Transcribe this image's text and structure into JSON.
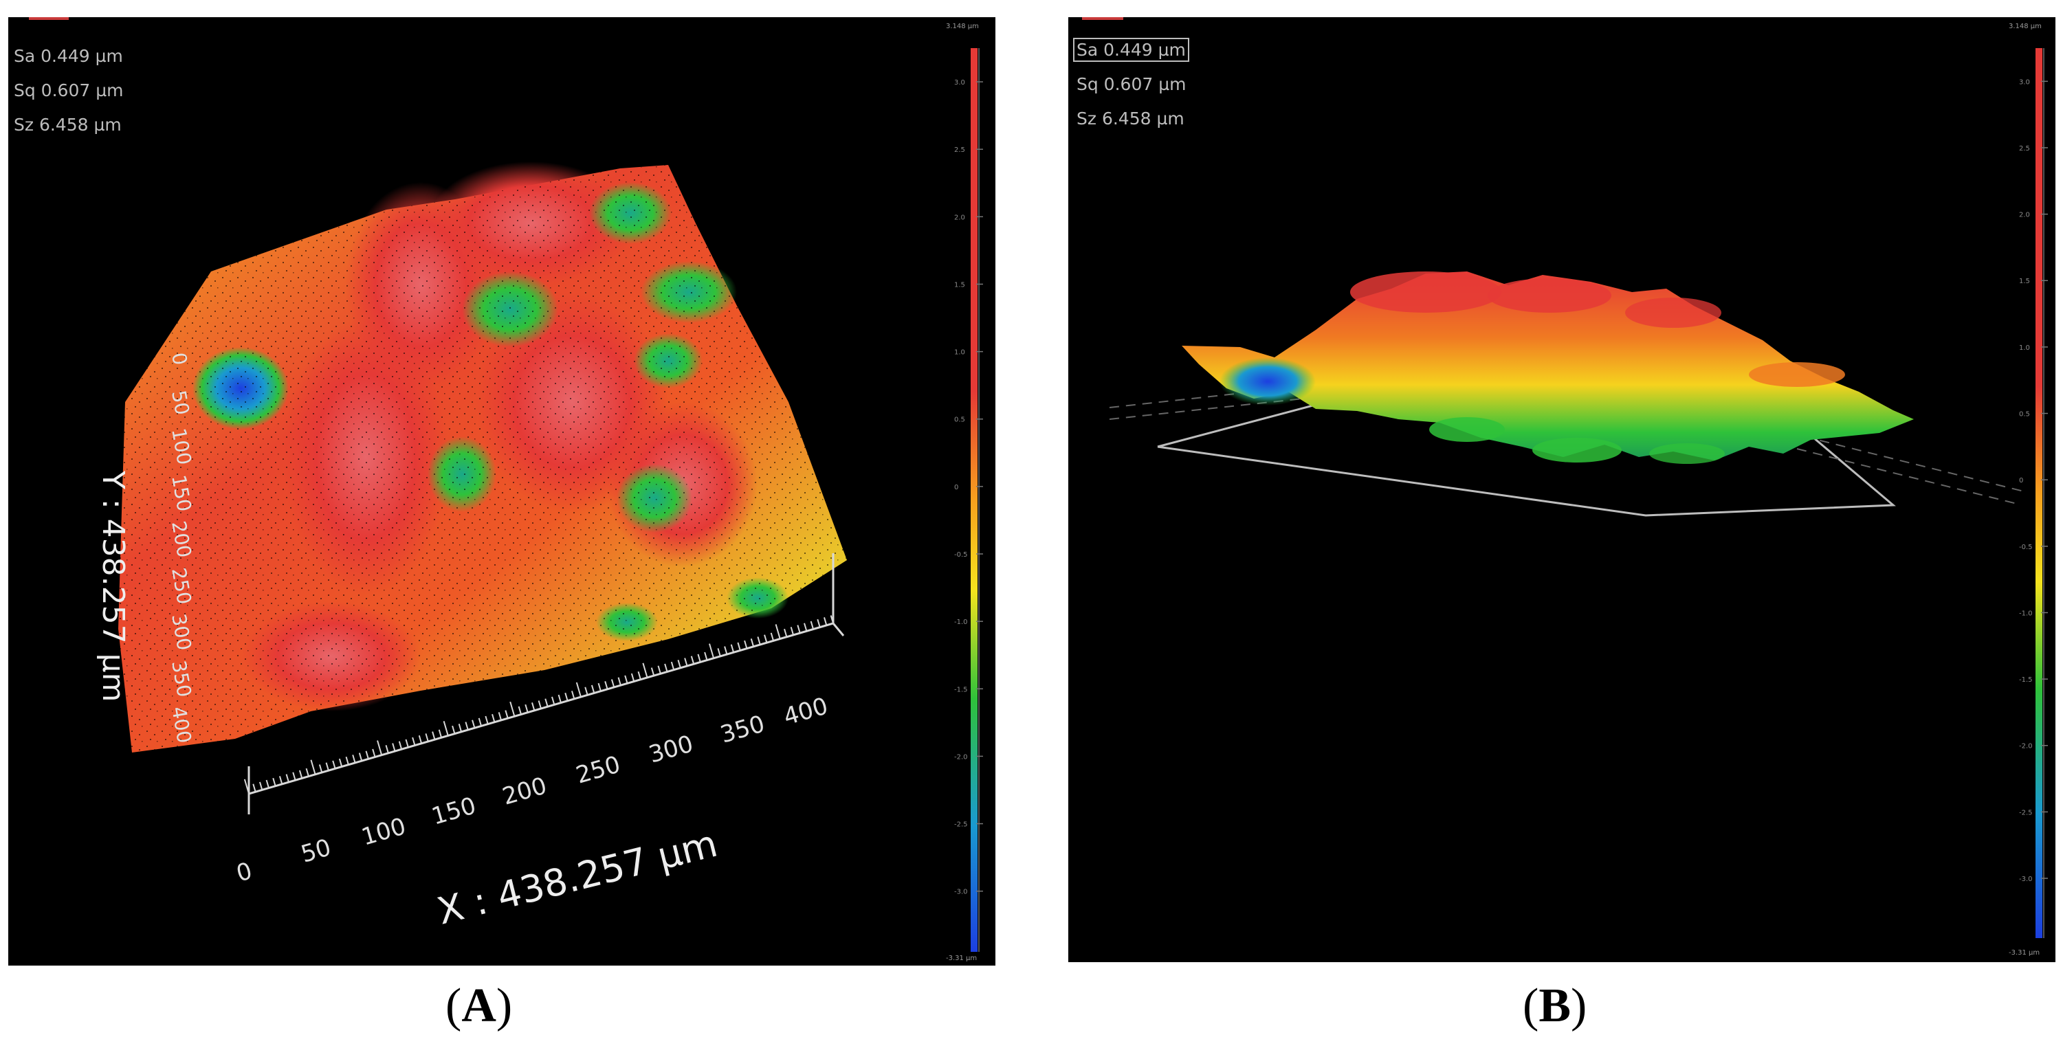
{
  "panel_a": {
    "caption_open": "(",
    "caption_letter": "A",
    "caption_close": ")",
    "stats": {
      "sa": "Sa 0.449 µm",
      "sq": "Sq 0.607 µm",
      "sz": "Sz 6.458 µm"
    },
    "x_axis_label": "X : 438.257 µm",
    "y_axis_label": "Y : 438.257 µm",
    "x_ticks": [
      "0",
      "50",
      "100",
      "150",
      "200",
      "250",
      "300",
      "350",
      "400"
    ],
    "y_ticks": [
      "0",
      "50",
      "100",
      "150",
      "200",
      "250",
      "300",
      "350",
      "400"
    ],
    "scale_top": "3.148 µm",
    "scale_bottom": "-3.31 µm"
  },
  "panel_b": {
    "caption_open": "(",
    "caption_letter": "B",
    "caption_close": ")",
    "stats": {
      "sa": "Sa 0.449 µm",
      "sq": "Sq 0.607 µm",
      "sz": "Sz 6.458 µm"
    },
    "scale_top": "3.148 µm",
    "scale_bottom": "-3.31 µm"
  },
  "colorbar_ticks": [
    "3.0",
    "2.5",
    "2.0",
    "1.5",
    "1.0",
    "0.5",
    "0",
    "-0.5",
    "-1.0",
    "-1.5",
    "-2.0",
    "-2.5",
    "-3.0"
  ],
  "colors": {
    "background": "#000000",
    "surface_high": "#e53a36",
    "surface_mid": "#f7b21e",
    "surface_low_green": "#2fc23a",
    "surface_lowest": "#1c3fe0",
    "axis": "#d8d8d8"
  }
}
